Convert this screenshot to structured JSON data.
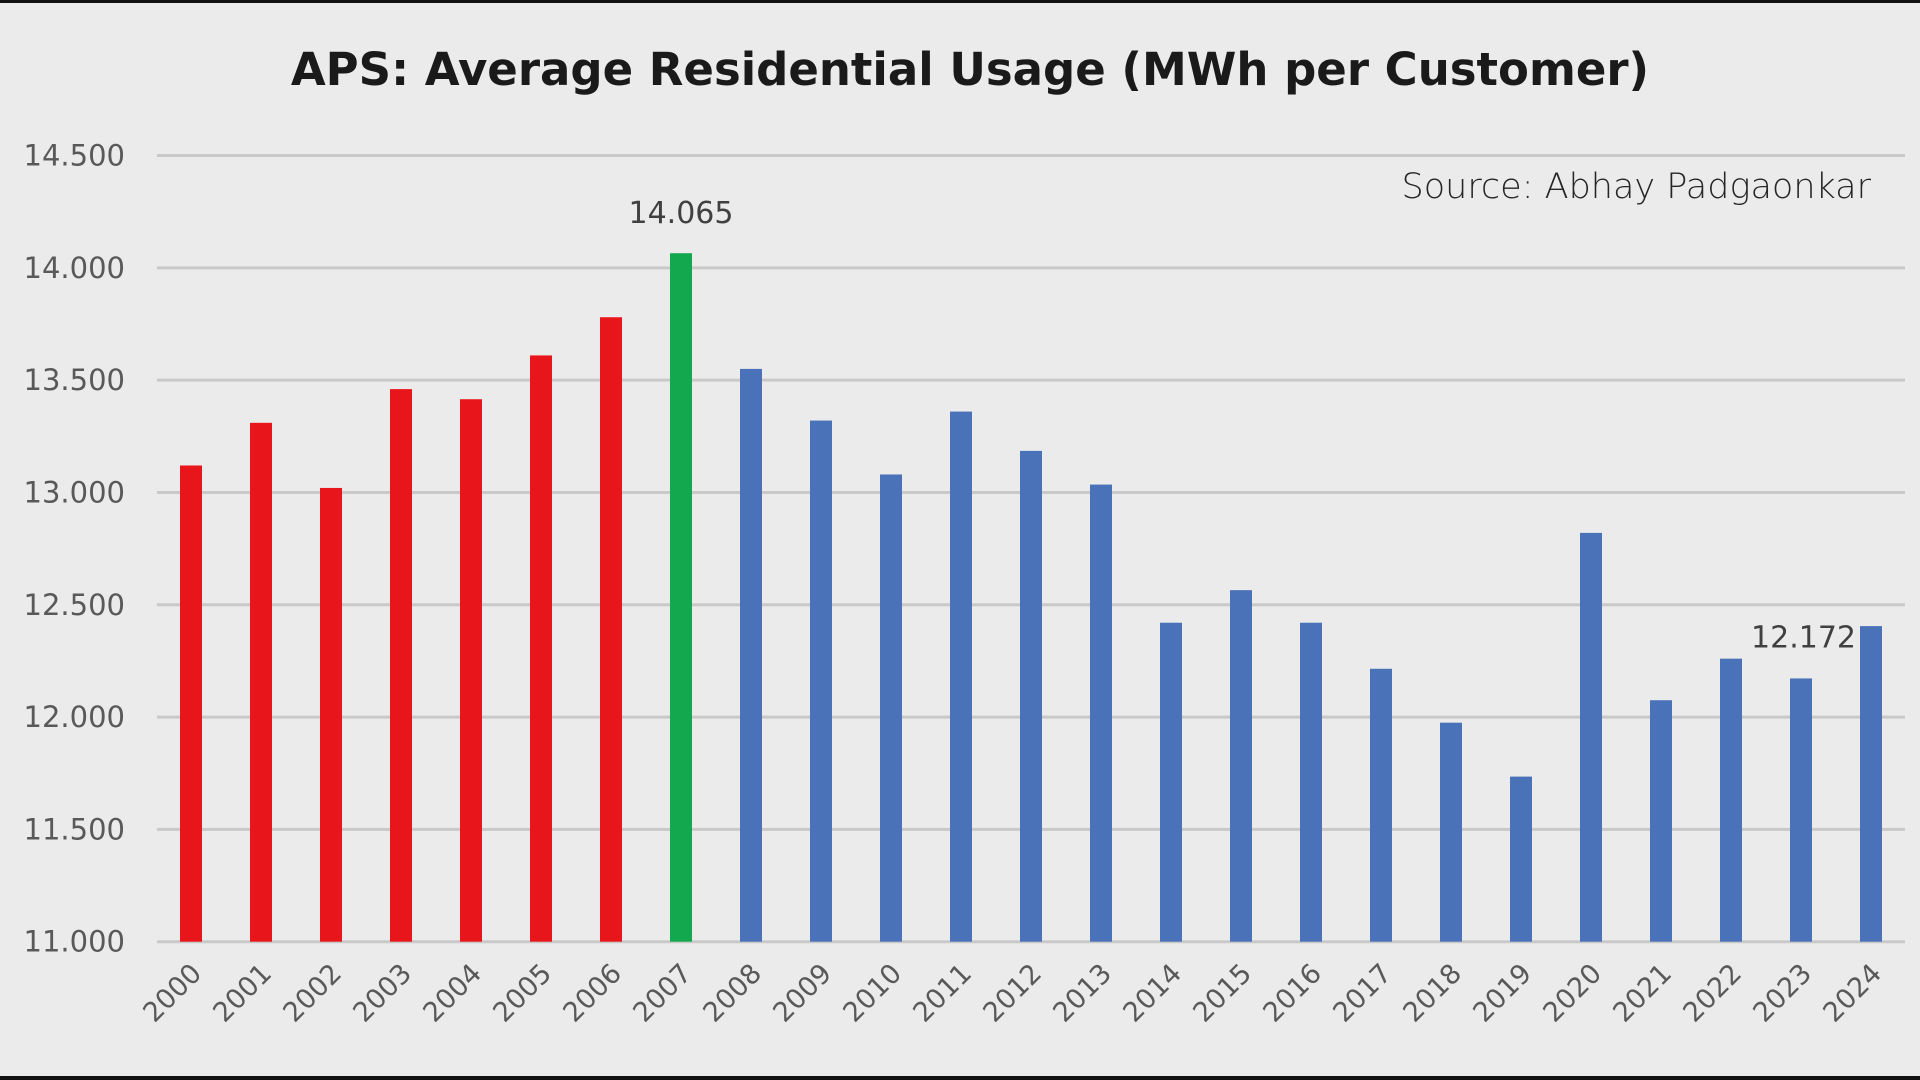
{
  "chart_data": {
    "type": "bar",
    "title": "APS: Average Residential Usage (MWh per Customer)",
    "annotation": "Source: Abhay Padgaonkar",
    "xlabel": "",
    "ylabel": "",
    "ylim": [
      11.0,
      14.5
    ],
    "yticks": [
      "11.000",
      "11.500",
      "12.000",
      "12.500",
      "13.000",
      "13.500",
      "14.000",
      "14.500"
    ],
    "ytick_values": [
      11.0,
      11.5,
      12.0,
      12.5,
      13.0,
      13.5,
      14.0,
      14.5
    ],
    "grid": true,
    "categories": [
      "2000",
      "2001",
      "2002",
      "2003",
      "2004",
      "2005",
      "2006",
      "2007",
      "2008",
      "2009",
      "2010",
      "2011",
      "2012",
      "2013",
      "2014",
      "2015",
      "2016",
      "2017",
      "2018",
      "2019",
      "2020",
      "2021",
      "2022",
      "2023",
      "2024"
    ],
    "values": [
      13.12,
      13.31,
      13.02,
      13.46,
      13.415,
      13.61,
      13.78,
      14.065,
      13.55,
      13.32,
      13.08,
      13.36,
      13.185,
      13.035,
      12.42,
      12.565,
      12.42,
      12.215,
      11.975,
      11.735,
      12.82,
      12.075,
      12.26,
      12.172,
      12.405
    ],
    "bar_colors": [
      "#e8161b",
      "#e8161b",
      "#e8161b",
      "#e8161b",
      "#e8161b",
      "#e8161b",
      "#e8161b",
      "#14a84e",
      "#4a72b8",
      "#4a72b8",
      "#4a72b8",
      "#4a72b8",
      "#4a72b8",
      "#4a72b8",
      "#4a72b8",
      "#4a72b8",
      "#4a72b8",
      "#4a72b8",
      "#4a72b8",
      "#4a72b8",
      "#4a72b8",
      "#4a72b8",
      "#4a72b8",
      "#4a72b8",
      "#4a72b8"
    ],
    "data_labels": [
      {
        "category": "2007",
        "text": "14.065"
      },
      {
        "category": "2023",
        "text": "12.172"
      }
    ]
  }
}
